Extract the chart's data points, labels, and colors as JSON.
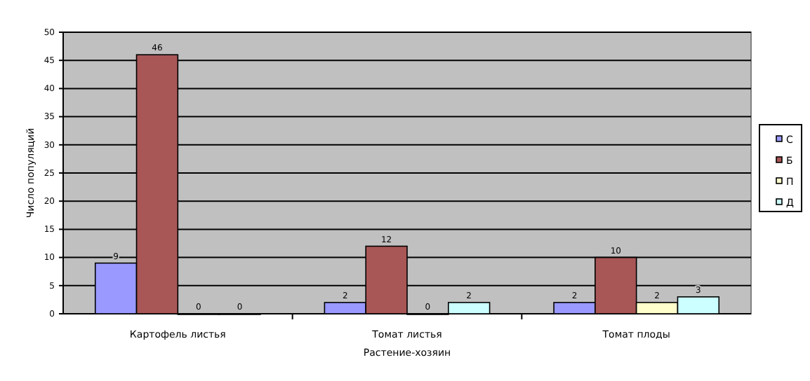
{
  "chart_data": {
    "type": "bar",
    "xlabel": "Растение-хозяин",
    "ylabel": "Число популяций",
    "categories": [
      "Картофель листья",
      "Томат листья",
      "Томат плоды"
    ],
    "series": [
      {
        "name": "С",
        "color": "#9999ff",
        "values": [
          9,
          2,
          2
        ]
      },
      {
        "name": "Б",
        "color": "#a85656",
        "values": [
          46,
          12,
          10
        ]
      },
      {
        "name": "П",
        "color": "#ffffcc",
        "values": [
          0,
          0,
          2
        ]
      },
      {
        "name": "Д",
        "color": "#ccffff",
        "values": [
          0,
          2,
          3
        ]
      }
    ],
    "ylim": [
      0,
      50
    ],
    "yticks": [
      0,
      5,
      10,
      15,
      20,
      25,
      30,
      35,
      40,
      45,
      50
    ],
    "grid": "y",
    "legend": "right",
    "data_labels": true
  }
}
